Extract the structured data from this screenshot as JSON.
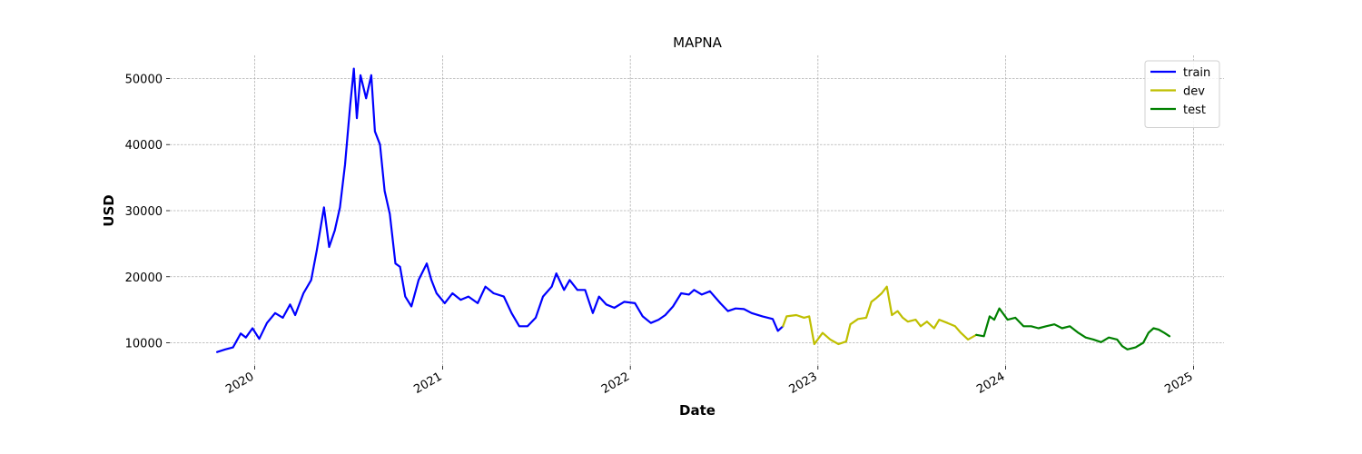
{
  "chart_data": {
    "type": "line",
    "title": "MAPNA",
    "xlabel": "Date",
    "ylabel": "USD",
    "x_type": "date",
    "xlim": [
      "2019-07-20",
      "2025-03-01"
    ],
    "ylim": [
      6500,
      53500
    ],
    "xticks": [
      {
        "date": "2020-01-01",
        "label": "2020"
      },
      {
        "date": "2021-01-01",
        "label": "2021"
      },
      {
        "date": "2022-01-01",
        "label": "2022"
      },
      {
        "date": "2023-01-01",
        "label": "2023"
      },
      {
        "date": "2024-01-01",
        "label": "2024"
      },
      {
        "date": "2025-01-01",
        "label": "2025"
      }
    ],
    "yticks": [
      10000,
      20000,
      30000,
      40000,
      50000
    ],
    "grid": true,
    "legend_position": "top-right",
    "series": [
      {
        "name": "train",
        "color": "#0000ff",
        "points": [
          [
            "2019-10-20",
            8600
          ],
          [
            "2019-11-05",
            9000
          ],
          [
            "2019-11-20",
            9300
          ],
          [
            "2019-12-05",
            11400
          ],
          [
            "2019-12-15",
            10800
          ],
          [
            "2019-12-28",
            12200
          ],
          [
            "2020-01-10",
            10600
          ],
          [
            "2020-01-25",
            13000
          ],
          [
            "2020-02-10",
            14500
          ],
          [
            "2020-02-25",
            13800
          ],
          [
            "2020-03-10",
            15800
          ],
          [
            "2020-03-20",
            14200
          ],
          [
            "2020-04-05",
            17500
          ],
          [
            "2020-04-20",
            19500
          ],
          [
            "2020-05-01",
            24000
          ],
          [
            "2020-05-15",
            30500
          ],
          [
            "2020-05-25",
            24500
          ],
          [
            "2020-06-05",
            27000
          ],
          [
            "2020-06-15",
            30500
          ],
          [
            "2020-06-25",
            37000
          ],
          [
            "2020-07-05",
            46000
          ],
          [
            "2020-07-12",
            51500
          ],
          [
            "2020-07-18",
            44000
          ],
          [
            "2020-07-25",
            50500
          ],
          [
            "2020-08-05",
            47000
          ],
          [
            "2020-08-15",
            50500
          ],
          [
            "2020-08-22",
            42000
          ],
          [
            "2020-09-01",
            40000
          ],
          [
            "2020-09-10",
            33000
          ],
          [
            "2020-09-20",
            29500
          ],
          [
            "2020-10-01",
            22000
          ],
          [
            "2020-10-10",
            21500
          ],
          [
            "2020-10-20",
            17000
          ],
          [
            "2020-11-01",
            15500
          ],
          [
            "2020-11-15",
            19500
          ],
          [
            "2020-12-01",
            22000
          ],
          [
            "2020-12-10",
            19500
          ],
          [
            "2020-12-20",
            17500
          ],
          [
            "2021-01-05",
            16000
          ],
          [
            "2021-01-20",
            17500
          ],
          [
            "2021-02-05",
            16500
          ],
          [
            "2021-02-20",
            17000
          ],
          [
            "2021-03-10",
            16000
          ],
          [
            "2021-03-25",
            18500
          ],
          [
            "2021-04-10",
            17500
          ],
          [
            "2021-04-30",
            17000
          ],
          [
            "2021-05-15",
            14500
          ],
          [
            "2021-05-30",
            12500
          ],
          [
            "2021-06-15",
            12500
          ],
          [
            "2021-07-01",
            13800
          ],
          [
            "2021-07-15",
            17000
          ],
          [
            "2021-08-01",
            18500
          ],
          [
            "2021-08-10",
            20500
          ],
          [
            "2021-08-25",
            18000
          ],
          [
            "2021-09-05",
            19500
          ],
          [
            "2021-09-20",
            18000
          ],
          [
            "2021-10-05",
            18000
          ],
          [
            "2021-10-20",
            14500
          ],
          [
            "2021-11-01",
            17000
          ],
          [
            "2021-11-15",
            15800
          ],
          [
            "2021-12-01",
            15300
          ],
          [
            "2021-12-20",
            16200
          ],
          [
            "2022-01-10",
            16000
          ],
          [
            "2022-01-25",
            14000
          ],
          [
            "2022-02-10",
            13000
          ],
          [
            "2022-02-25",
            13500
          ],
          [
            "2022-03-10",
            14200
          ],
          [
            "2022-03-25",
            15500
          ],
          [
            "2022-04-10",
            17500
          ],
          [
            "2022-04-25",
            17300
          ],
          [
            "2022-05-05",
            18000
          ],
          [
            "2022-05-20",
            17300
          ],
          [
            "2022-06-05",
            17800
          ],
          [
            "2022-06-25",
            16000
          ],
          [
            "2022-07-10",
            14800
          ],
          [
            "2022-07-25",
            15200
          ],
          [
            "2022-08-10",
            15100
          ],
          [
            "2022-08-25",
            14500
          ],
          [
            "2022-09-15",
            14000
          ],
          [
            "2022-10-05",
            13600
          ],
          [
            "2022-10-15",
            11800
          ],
          [
            "2022-10-25",
            12500
          ]
        ]
      },
      {
        "name": "dev",
        "color": "#bfbf00",
        "points": [
          [
            "2022-10-25",
            12500
          ],
          [
            "2022-11-01",
            14000
          ],
          [
            "2022-11-20",
            14200
          ],
          [
            "2022-12-05",
            13800
          ],
          [
            "2022-12-15",
            14000
          ],
          [
            "2022-12-25",
            9800
          ],
          [
            "2023-01-10",
            11500
          ],
          [
            "2023-01-25",
            10500
          ],
          [
            "2023-02-10",
            9800
          ],
          [
            "2023-02-25",
            10200
          ],
          [
            "2023-03-05",
            12800
          ],
          [
            "2023-03-20",
            13600
          ],
          [
            "2023-04-05",
            13800
          ],
          [
            "2023-04-15",
            16200
          ],
          [
            "2023-04-25",
            16800
          ],
          [
            "2023-05-05",
            17500
          ],
          [
            "2023-05-15",
            18500
          ],
          [
            "2023-05-25",
            14200
          ],
          [
            "2023-06-05",
            14800
          ],
          [
            "2023-06-15",
            13800
          ],
          [
            "2023-06-25",
            13200
          ],
          [
            "2023-07-10",
            13500
          ],
          [
            "2023-07-20",
            12500
          ],
          [
            "2023-08-01",
            13200
          ],
          [
            "2023-08-15",
            12200
          ],
          [
            "2023-08-25",
            13500
          ],
          [
            "2023-09-10",
            13000
          ],
          [
            "2023-09-25",
            12500
          ],
          [
            "2023-10-05",
            11600
          ],
          [
            "2023-10-20",
            10500
          ],
          [
            "2023-11-05",
            11200
          ]
        ]
      },
      {
        "name": "test",
        "color": "#008000",
        "points": [
          [
            "2023-11-05",
            11200
          ],
          [
            "2023-11-20",
            11000
          ],
          [
            "2023-12-01",
            14000
          ],
          [
            "2023-12-10",
            13500
          ],
          [
            "2023-12-20",
            15200
          ],
          [
            "2024-01-05",
            13500
          ],
          [
            "2024-01-20",
            13800
          ],
          [
            "2024-02-05",
            12500
          ],
          [
            "2024-02-20",
            12500
          ],
          [
            "2024-03-05",
            12200
          ],
          [
            "2024-03-20",
            12500
          ],
          [
            "2024-04-05",
            12800
          ],
          [
            "2024-04-20",
            12200
          ],
          [
            "2024-05-05",
            12500
          ],
          [
            "2024-05-20",
            11600
          ],
          [
            "2024-06-05",
            10800
          ],
          [
            "2024-06-20",
            10500
          ],
          [
            "2024-07-05",
            10100
          ],
          [
            "2024-07-20",
            10800
          ],
          [
            "2024-08-05",
            10500
          ],
          [
            "2024-08-15",
            9500
          ],
          [
            "2024-08-25",
            9000
          ],
          [
            "2024-09-10",
            9300
          ],
          [
            "2024-09-25",
            10000
          ],
          [
            "2024-10-05",
            11500
          ],
          [
            "2024-10-15",
            12200
          ],
          [
            "2024-10-25",
            12000
          ],
          [
            "2024-11-05",
            11500
          ],
          [
            "2024-11-15",
            11000
          ]
        ]
      }
    ]
  }
}
